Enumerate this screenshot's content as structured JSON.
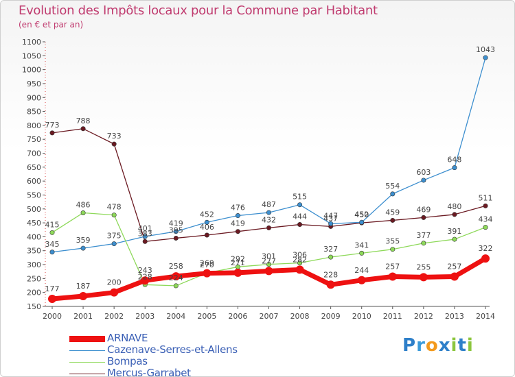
{
  "header": {
    "title": "Evolution des Impôts locaux pour la Commune par Habitant",
    "subtitle": "(en € et par an)"
  },
  "chart_data": {
    "type": "line",
    "title": "Evolution des Impôts locaux pour la Commune par Habitant",
    "subtitle": "(en € et par an)",
    "xlabel": "",
    "ylabel": "",
    "x": [
      "2000",
      "2001",
      "2002",
      "2003",
      "2004",
      "2005",
      "2006",
      "2007",
      "2008",
      "2009",
      "2010",
      "2011",
      "2012",
      "2013",
      "2014"
    ],
    "ylim": [
      150,
      1100
    ],
    "yticks": [
      150,
      200,
      250,
      300,
      350,
      400,
      450,
      500,
      550,
      600,
      650,
      700,
      750,
      800,
      850,
      900,
      950,
      1000,
      1050,
      1100
    ],
    "grid": "none",
    "legend_position": "bottom-left",
    "series": [
      {
        "name": "Mercus-Garrabet",
        "color": "#6b1a22",
        "values": [
          773,
          788,
          733,
          383,
          395,
          406,
          419,
          432,
          444,
          437,
          450,
          459,
          469,
          480,
          511
        ],
        "labels": [
          "773",
          "788",
          "733",
          "383",
          "395",
          "406",
          "419",
          "432",
          "444",
          "437",
          "450",
          "459",
          "469",
          "480",
          "511"
        ]
      },
      {
        "name": "Cazenave-Serres-et-Allens",
        "color": "#3d8fcf",
        "values": [
          345,
          359,
          375,
          401,
          419,
          452,
          476,
          487,
          515,
          447,
          452,
          554,
          603,
          648,
          1043
        ],
        "labels": [
          "345",
          "359",
          "375",
          "401",
          "419",
          "452",
          "476",
          "487",
          "515",
          "447",
          "452",
          "554",
          "603",
          "648",
          "1043"
        ]
      },
      {
        "name": "Bompas",
        "color": "#8ed95a",
        "values": [
          415,
          486,
          478,
          228,
          224,
          270,
          292,
          301,
          306,
          327,
          341,
          355,
          377,
          391,
          434
        ],
        "labels": [
          "415",
          "486",
          "478",
          "228",
          "224",
          "270",
          "292",
          "301",
          "306",
          "327",
          "341",
          "355",
          "377",
          "391",
          "434"
        ]
      },
      {
        "name": "ARNAVE",
        "color": "#ee1111",
        "values": [
          177,
          187,
          200,
          243,
          258,
          269,
          271,
          277,
          282,
          228,
          244,
          257,
          255,
          257,
          322
        ],
        "labels": [
          "177",
          "187",
          "200",
          "243",
          "258",
          "269",
          "271",
          "277",
          "282",
          "228",
          "244",
          "257",
          "255",
          "257",
          "322"
        ]
      }
    ]
  },
  "legend": {
    "items": [
      {
        "label": "ARNAVE",
        "color": "#ee1111"
      },
      {
        "label": "Cazenave-Serres-et-Allens",
        "color": "#3d8fcf"
      },
      {
        "label": "Bompas",
        "color": "#8ed95a"
      },
      {
        "label": "Mercus-Garrabet",
        "color": "#6b1a22"
      }
    ]
  },
  "logo": {
    "text": "Proxiti",
    "letters": [
      "P",
      "r",
      "o",
      "x",
      "i",
      "t",
      "i"
    ],
    "colors": [
      "#2e7fc9",
      "#3a9ad9",
      "#f39a1e",
      "#2e7fc9",
      "#8cc63e",
      "#2e7fc9",
      "#8cc63e"
    ]
  }
}
